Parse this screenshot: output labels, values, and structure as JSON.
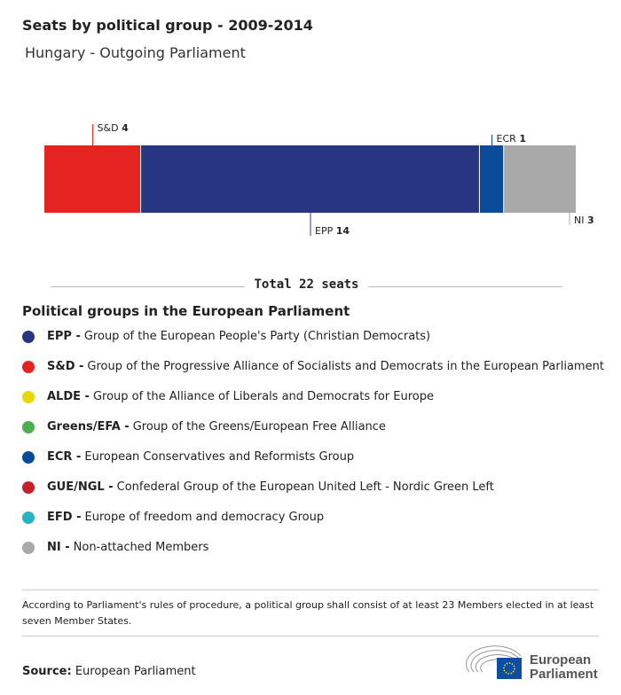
{
  "header": {
    "title": "Seats by political group - 2009-2014",
    "subtitle": "Hungary - Outgoing Parliament"
  },
  "chart_data": {
    "type": "bar",
    "orientation": "stacked-horizontal",
    "categories": [
      "S&D",
      "EPP",
      "ECR",
      "NI"
    ],
    "values": [
      4,
      14,
      1,
      3
    ],
    "colors": [
      "#e52421",
      "#283580",
      "#0a4c9a",
      "#a9a9a9"
    ],
    "label_position": [
      "top",
      "bottom",
      "top",
      "bottom"
    ],
    "total": 22
  },
  "total_label": "Total 22 seats",
  "legend": {
    "title": "Political groups in the European Parliament",
    "items": [
      {
        "abbr": "EPP -",
        "name": "Group of the European People's Party (Christian Democrats)",
        "color": "#283580"
      },
      {
        "abbr": "S&D -",
        "name": "Group of the Progressive Alliance of Socialists and Democrats in the European Parliament",
        "color": "#e52421"
      },
      {
        "abbr": "ALDE -",
        "name": "Group of the Alliance of Liberals and Democrats for Europe",
        "color": "#e8d800"
      },
      {
        "abbr": "Greens/EFA -",
        "name": "Group of the Greens/European Free Alliance",
        "color": "#4caf50"
      },
      {
        "abbr": "ECR -",
        "name": "European Conservatives and Reformists Group",
        "color": "#0a4c9a"
      },
      {
        "abbr": "GUE/NGL -",
        "name": "Confederal Group of the European United Left - Nordic Green Left",
        "color": "#c8202a"
      },
      {
        "abbr": "EFD -",
        "name": "Europe of freedom and democracy Group",
        "color": "#27b3c4"
      },
      {
        "abbr": "NI -",
        "name": "Non-attached Members",
        "color": "#a9a9a9"
      }
    ]
  },
  "note": "According to Parliament's rules of procedure, a political group shall consist of at least 23 Members elected in at least seven Member States.",
  "source": {
    "label": "Source:",
    "value": "European Parliament"
  },
  "logo": {
    "text_line1": "European",
    "text_line2": "Parliament"
  }
}
